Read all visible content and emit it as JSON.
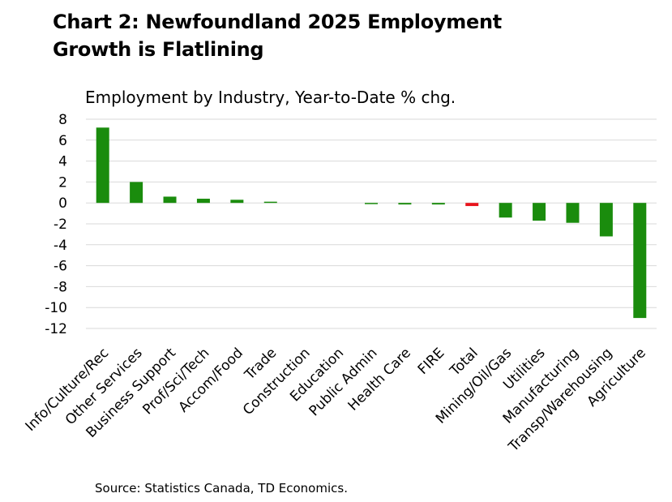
{
  "chart_data": {
    "type": "bar",
    "title_lines": [
      "Chart 2: Newfoundland 2025 Employment",
      "Growth is Flatlining"
    ],
    "subtitle": "Employment by Industry, Year-to-Date % chg.",
    "source": "Source: Statistics Canada, TD Economics.",
    "xlabel": "",
    "ylabel": "",
    "ylim": [
      -12,
      8
    ],
    "yticks": [
      8,
      6,
      4,
      2,
      0,
      -2,
      -4,
      -6,
      -8,
      -10,
      -12
    ],
    "grid": true,
    "categories": [
      "Info/Culture/Rec",
      "Other Services",
      "Business Support",
      "Prof/Sci/Tech",
      "Accom/Food",
      "Trade",
      "Construction",
      "Education",
      "Public Admin",
      "Health Care",
      "FIRE",
      "Total",
      "Mining/Oil/Gas",
      "Utilities",
      "Manufacturing",
      "Transp/Warehousing",
      "Agriculture"
    ],
    "values": [
      7.2,
      2.0,
      0.6,
      0.4,
      0.3,
      0.1,
      0.0,
      0.0,
      -0.1,
      -0.15,
      -0.15,
      -0.3,
      -1.4,
      -1.7,
      -1.9,
      -3.2,
      -11.0
    ],
    "highlight_category": "Total",
    "colors": {
      "bar": "#1a8c0d",
      "highlight": "#e8141c",
      "grid": "#d9d9d9",
      "text": "#000000"
    }
  }
}
